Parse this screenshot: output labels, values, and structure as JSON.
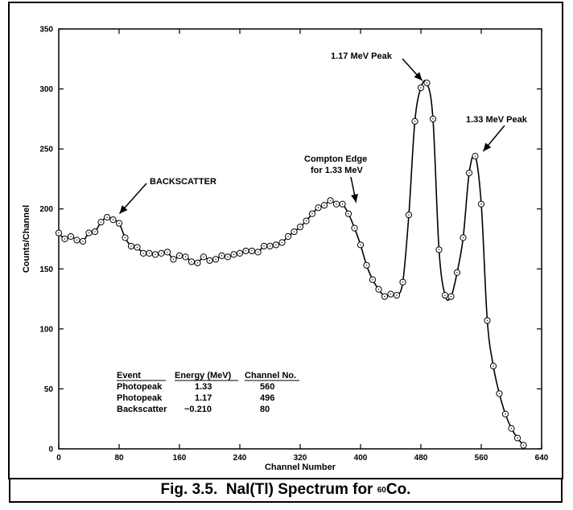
{
  "caption": {
    "prefix": "Fig. 3.5.  NaI(Tl) Spectrum for ",
    "isotope_mass": "60",
    "element": "Co."
  },
  "chart_data": {
    "type": "scatter",
    "title": "",
    "xlabel": "Channel Number",
    "ylabel": "Counts/Channel",
    "xlim": [
      0,
      640
    ],
    "ylim": [
      0,
      350
    ],
    "xticks": [
      0,
      80,
      160,
      240,
      320,
      400,
      480,
      560,
      640
    ],
    "yticks": [
      0,
      50,
      100,
      150,
      200,
      250,
      300,
      350
    ],
    "grid": false,
    "series": [
      {
        "style": "line+circle-markers",
        "x": [
          0,
          8,
          16,
          24,
          32,
          40,
          48,
          56,
          64,
          72,
          80,
          88,
          96,
          104,
          112,
          120,
          128,
          136,
          144,
          152,
          160,
          168,
          176,
          184,
          192,
          200,
          208,
          216,
          224,
          232,
          240,
          248,
          256,
          264,
          272,
          280,
          288,
          296,
          304,
          312,
          320,
          328,
          336,
          344,
          352,
          360,
          368,
          376,
          384,
          392,
          400,
          408,
          416,
          424,
          432,
          440,
          448,
          456,
          464,
          472,
          480,
          488,
          496,
          504,
          512,
          520,
          528,
          536,
          544,
          552,
          560,
          568,
          576,
          584,
          592,
          600,
          608,
          616
        ],
        "y": [
          180,
          175,
          177,
          174,
          173,
          180,
          181,
          189,
          193,
          191,
          188,
          176,
          169,
          168,
          163,
          163,
          162,
          163,
          164,
          158,
          161,
          160,
          156,
          155,
          160,
          157,
          158,
          161,
          160,
          162,
          163,
          165,
          165,
          164,
          169,
          169,
          170,
          172,
          177,
          181,
          185,
          190,
          196,
          201,
          203,
          207,
          204,
          204,
          196,
          184,
          170,
          153,
          141,
          133,
          127,
          129,
          128,
          139,
          195,
          273,
          301,
          305,
          275,
          166,
          128,
          127,
          147,
          176,
          230,
          244,
          204,
          107,
          69,
          46,
          29,
          17,
          9,
          3
        ]
      }
    ],
    "annotations": [
      {
        "text": "BACKSCATTER",
        "x": 73,
        "y": 192
      },
      {
        "text": "Compton Edge",
        "x": 392,
        "y": 200
      },
      {
        "text": "for 1.33 MeV",
        "x": 392,
        "y": 200
      },
      {
        "text": "1.17 MeV Peak",
        "x": 487,
        "y": 303
      },
      {
        "text": "1.33 MeV Peak",
        "x": 554,
        "y": 244
      }
    ],
    "table": {
      "headers": [
        "Event",
        "Energy (MeV)",
        "Channel No."
      ],
      "rows": [
        [
          "Photopeak",
          "1.33",
          "560"
        ],
        [
          "Photopeak",
          "1.17",
          "496"
        ],
        [
          "Backscatter",
          "~0.210",
          "80"
        ]
      ]
    }
  }
}
